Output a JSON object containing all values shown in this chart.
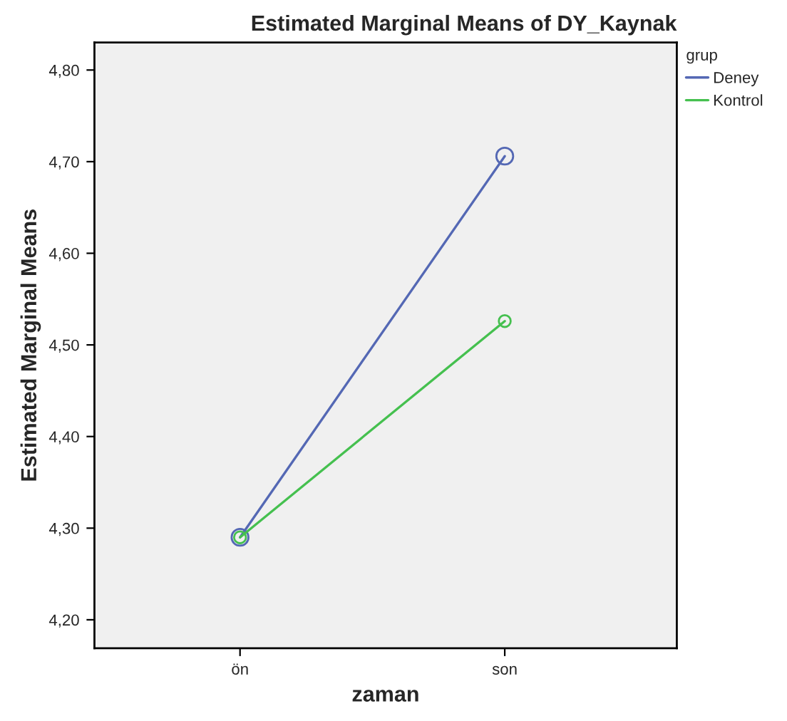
{
  "chart_data": {
    "type": "line",
    "title": "Estimated Marginal Means of DY_Kaynak",
    "xlabel": "zaman",
    "ylabel": "Estimated Marginal Means",
    "legend_title": "grup",
    "categories": [
      "ön",
      "son"
    ],
    "series": [
      {
        "name": "Deney",
        "color": "#5468b4",
        "values": [
          4.29,
          4.706
        ]
      },
      {
        "name": "Kontrol",
        "color": "#45c04f",
        "values": [
          4.29,
          4.526
        ]
      }
    ],
    "ylim": [
      4.169,
      4.83
    ],
    "yticks": [
      {
        "value": 4.2,
        "label": "4,20"
      },
      {
        "value": 4.3,
        "label": "4,30"
      },
      {
        "value": 4.4,
        "label": "4,40"
      },
      {
        "value": 4.5,
        "label": "4,50"
      },
      {
        "value": 4.6,
        "label": "4,60"
      },
      {
        "value": 4.7,
        "label": "4,70"
      },
      {
        "value": 4.8,
        "label": "4,80"
      }
    ],
    "grid": false,
    "legend": "top right",
    "marker": "circle",
    "line_style": "solid"
  }
}
